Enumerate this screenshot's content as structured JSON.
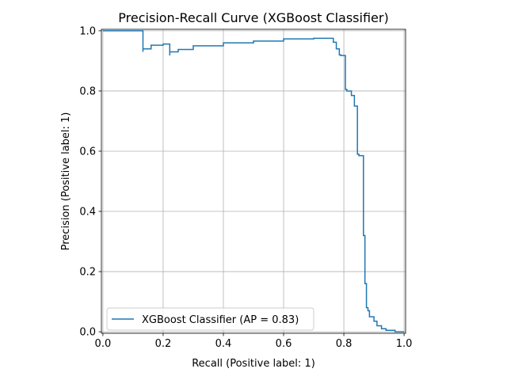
{
  "chart_data": {
    "type": "line",
    "title": "Precision-Recall Curve (XGBoost Classifier)",
    "xlabel": "Recall (Positive label: 1)",
    "ylabel": "Precision (Positive label: 1)",
    "xlim": [
      -0.005,
      1.005
    ],
    "ylim": [
      -0.005,
      1.005
    ],
    "xticks": [
      "0.0",
      "0.2",
      "0.4",
      "0.6",
      "0.8",
      "1.0"
    ],
    "yticks": [
      "0.0",
      "0.2",
      "0.4",
      "0.6",
      "0.8",
      "1.0"
    ],
    "grid": true,
    "legend_position": "lower-left",
    "series": [
      {
        "name": "XGBoost Classifier (AP = 0.83)",
        "color": "#1f77b4",
        "drawstyle": "steps-post",
        "points": [
          [
            1.0,
            0.0
          ],
          [
            0.97,
            0.005
          ],
          [
            0.94,
            0.01
          ],
          [
            0.925,
            0.02
          ],
          [
            0.91,
            0.035
          ],
          [
            0.9,
            0.05
          ],
          [
            0.885,
            0.07
          ],
          [
            0.88,
            0.08
          ],
          [
            0.875,
            0.16
          ],
          [
            0.87,
            0.32
          ],
          [
            0.865,
            0.585
          ],
          [
            0.85,
            0.59
          ],
          [
            0.845,
            0.75
          ],
          [
            0.835,
            0.785
          ],
          [
            0.825,
            0.8
          ],
          [
            0.81,
            0.805
          ],
          [
            0.805,
            0.918
          ],
          [
            0.79,
            0.92
          ],
          [
            0.785,
            0.94
          ],
          [
            0.775,
            0.962
          ],
          [
            0.765,
            0.975
          ],
          [
            0.7,
            0.973
          ],
          [
            0.6,
            0.966
          ],
          [
            0.5,
            0.96
          ],
          [
            0.4,
            0.95
          ],
          [
            0.3,
            0.938
          ],
          [
            0.25,
            0.93
          ],
          [
            0.222,
            0.918
          ],
          [
            0.222,
            0.956
          ],
          [
            0.2,
            0.952
          ],
          [
            0.16,
            0.94
          ],
          [
            0.133,
            0.93
          ],
          [
            0.133,
            1.0
          ],
          [
            0.0,
            1.0
          ]
        ]
      }
    ]
  }
}
